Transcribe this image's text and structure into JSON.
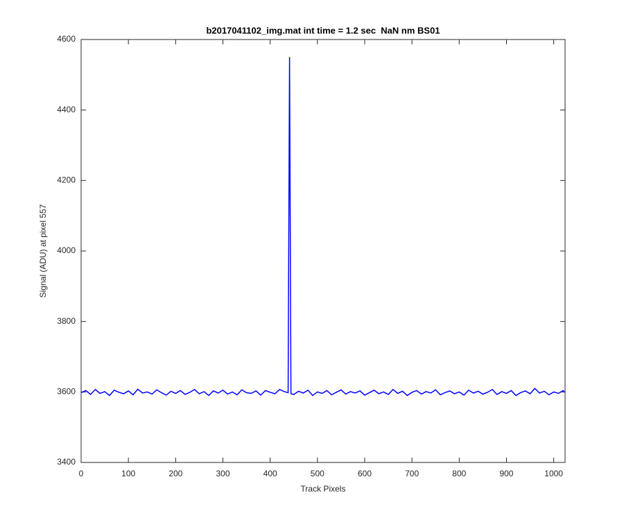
{
  "chart_data": {
    "type": "line",
    "title": "b2017041102_img.mat int time = 1.2 sec  NaN nm BS01",
    "x_label": "Track Pixels",
    "y_label": "Signal (ADU) at pixel 557",
    "x": [
      0,
      10,
      20,
      30,
      40,
      50,
      60,
      70,
      80,
      90,
      100,
      110,
      120,
      130,
      140,
      150,
      160,
      170,
      180,
      190,
      200,
      210,
      220,
      230,
      240,
      250,
      260,
      270,
      280,
      290,
      300,
      310,
      320,
      330,
      340,
      350,
      360,
      370,
      380,
      390,
      400,
      410,
      420,
      430,
      438,
      441,
      444,
      450,
      460,
      470,
      480,
      490,
      500,
      510,
      520,
      530,
      540,
      550,
      560,
      570,
      580,
      590,
      600,
      610,
      620,
      630,
      640,
      650,
      660,
      670,
      680,
      690,
      700,
      710,
      720,
      730,
      740,
      750,
      760,
      770,
      780,
      790,
      800,
      810,
      820,
      830,
      840,
      850,
      860,
      870,
      880,
      890,
      900,
      910,
      920,
      930,
      940,
      950,
      960,
      970,
      980,
      990,
      1000,
      1010,
      1020,
      1023
    ],
    "series": [
      {
        "color": "#0000ff",
        "values": [
          3598,
          3604,
          3593,
          3607,
          3596,
          3601,
          3590,
          3605,
          3599,
          3595,
          3603,
          3592,
          3608,
          3597,
          3600,
          3594,
          3606,
          3598,
          3591,
          3602,
          3596,
          3604,
          3593,
          3599,
          3607,
          3595,
          3601,
          3590,
          3603,
          3597,
          3605,
          3594,
          3600,
          3592,
          3606,
          3598,
          3596,
          3603,
          3591,
          3604,
          3599,
          3595,
          3607,
          3601,
          3598,
          4550,
          3595,
          3593,
          3602,
          3597,
          3605,
          3590,
          3600,
          3596,
          3604,
          3592,
          3599,
          3606,
          3594,
          3601,
          3597,
          3603,
          3591,
          3598,
          3605,
          3595,
          3600,
          3593,
          3607,
          3596,
          3602,
          3590,
          3599,
          3604,
          3594,
          3601,
          3597,
          3606,
          3592,
          3598,
          3603,
          3595,
          3600,
          3591,
          3605,
          3597,
          3602,
          3594,
          3599,
          3607,
          3593,
          3601,
          3596,
          3604,
          3590,
          3598,
          3603,
          3595,
          3610,
          3597,
          3602,
          3592,
          3600,
          3596,
          3604,
          3599
        ]
      }
    ],
    "xlim": [
      0,
      1024
    ],
    "xticks": [
      0,
      100,
      200,
      300,
      400,
      500,
      600,
      700,
      800,
      900,
      1000
    ],
    "ylim": [
      3400,
      4600
    ],
    "yticks": [
      3400,
      3600,
      3800,
      4000,
      4200,
      4400,
      4600
    ],
    "grid": false
  }
}
